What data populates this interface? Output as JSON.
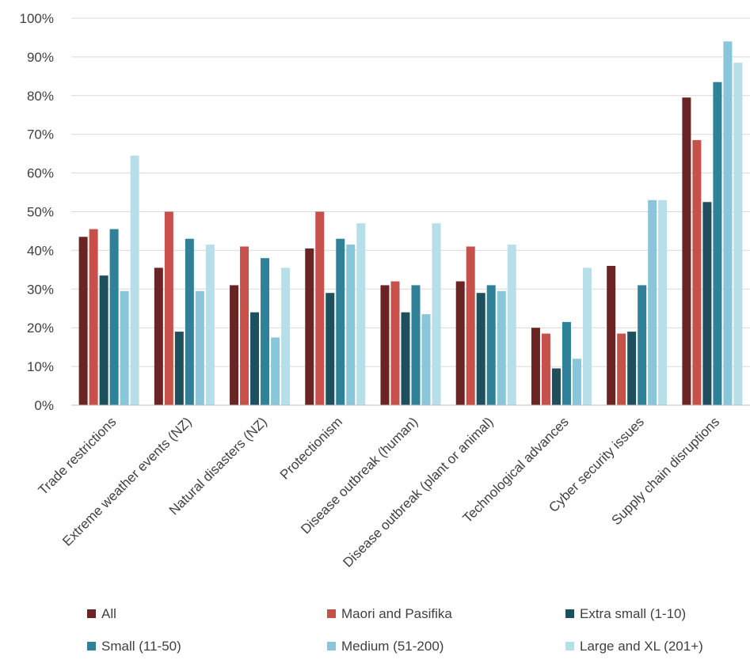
{
  "chart_data": {
    "type": "bar",
    "title": "",
    "xlabel": "",
    "ylabel": "",
    "ylim": [
      0,
      100
    ],
    "yticks": [
      0,
      10,
      20,
      30,
      40,
      50,
      60,
      70,
      80,
      90,
      100
    ],
    "ytick_suffix": "%",
    "grid": true,
    "legend_position": "bottom",
    "categories": [
      "Trade restrictions",
      "Extreme weather events (NZ)",
      "Natural disasters (NZ)",
      "Protectionism",
      "Disease outbreak (human)",
      "Disease outbreak (plant or animal)",
      "Technological advances",
      "Cyber security issues",
      "Supply chain disruptions"
    ],
    "series": [
      {
        "name": "All",
        "color": "#6b2424",
        "values": [
          43.5,
          35.5,
          31,
          40.5,
          31,
          32,
          20,
          36,
          79.5
        ]
      },
      {
        "name": "Maori and Pasifika",
        "color": "#c8504a",
        "values": [
          45.5,
          50,
          41,
          50,
          32,
          41,
          18.5,
          18.5,
          68.5
        ]
      },
      {
        "name": "Extra small  (1-10)",
        "color": "#1e4f5c",
        "values": [
          33.5,
          19,
          24,
          29,
          24,
          29,
          9.5,
          19,
          52.5
        ]
      },
      {
        "name": "Small (11-50)",
        "color": "#2e8196",
        "values": [
          45.5,
          43,
          38,
          43,
          31,
          31,
          21.5,
          31,
          83.5
        ]
      },
      {
        "name": "Medium (51-200)",
        "color": "#89c6da",
        "values": [
          29.5,
          29.5,
          17.5,
          41.5,
          23.5,
          29.5,
          12,
          53,
          94
        ]
      },
      {
        "name": "Large and XL (201+)",
        "color": "#b6dfe9",
        "values": [
          64.5,
          41.5,
          35.5,
          47,
          47,
          41.5,
          35.5,
          53,
          88.5
        ]
      }
    ]
  }
}
